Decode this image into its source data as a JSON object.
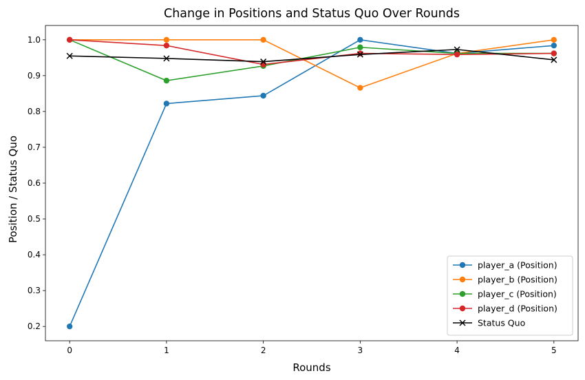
{
  "chart_data": {
    "type": "line",
    "title": "Change in Positions and Status Quo Over Rounds",
    "xlabel": "Rounds",
    "ylabel": "Position / Status Quo",
    "x": [
      0,
      1,
      2,
      3,
      4,
      5
    ],
    "xlim": [
      -0.25,
      5.25
    ],
    "ylim": [
      0.16,
      1.04
    ],
    "xticks": [
      "0",
      "1",
      "2",
      "3",
      "4",
      "5"
    ],
    "yticks": [
      "0.2",
      "0.3",
      "0.4",
      "0.5",
      "0.6",
      "0.7",
      "0.8",
      "0.9",
      "1.0"
    ],
    "grid": false,
    "legend_position": "lower-right",
    "series": [
      {
        "name": "player_a (Position)",
        "color": "#1f77b4",
        "marker": "circle",
        "values": [
          0.2,
          0.822,
          0.844,
          1.0,
          0.962,
          0.984
        ]
      },
      {
        "name": "player_b (Position)",
        "color": "#ff7f0e",
        "marker": "circle",
        "values": [
          1.0,
          1.0,
          1.0,
          0.866,
          0.962,
          1.0
        ]
      },
      {
        "name": "player_c (Position)",
        "color": "#2ca02c",
        "marker": "circle",
        "values": [
          1.0,
          0.886,
          0.927,
          0.979,
          0.962,
          0.962
        ]
      },
      {
        "name": "player_d (Position)",
        "color": "#d62728",
        "marker": "circle",
        "values": [
          1.0,
          0.984,
          0.931,
          0.962,
          0.959,
          0.962
        ]
      },
      {
        "name": "Status Quo",
        "color": "#000000",
        "marker": "x",
        "values": [
          0.955,
          0.948,
          0.939,
          0.959,
          0.973,
          0.944
        ]
      }
    ]
  }
}
